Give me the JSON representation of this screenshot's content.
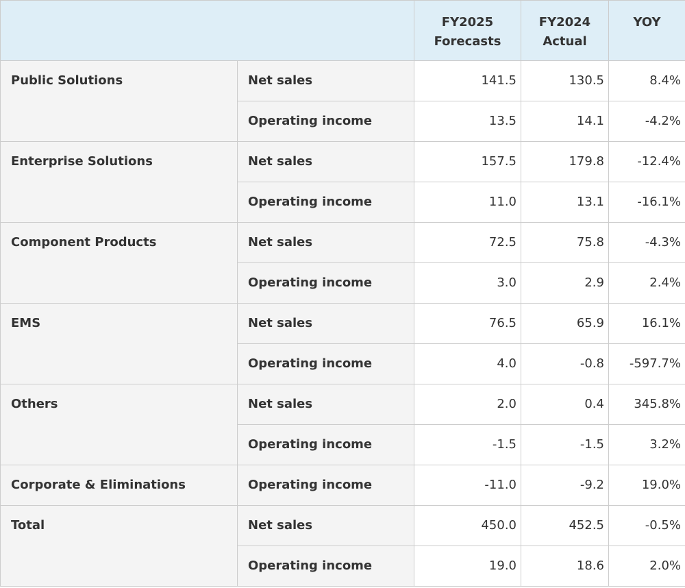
{
  "header": {
    "col1": [
      "FY2025",
      "Forecasts"
    ],
    "col2": [
      "FY2024",
      "Actual"
    ],
    "col3": [
      "YOY"
    ]
  },
  "segments": [
    {
      "name": "Public Solutions",
      "rows": [
        {
          "metric": "Net sales",
          "fy2025": "141.5",
          "fy2024": "130.5",
          "yoy": "8.4%"
        },
        {
          "metric": "Operating income",
          "fy2025": "13.5",
          "fy2024": "14.1",
          "yoy": "-4.2%"
        }
      ]
    },
    {
      "name": "Enterprise Solutions",
      "rows": [
        {
          "metric": "Net sales",
          "fy2025": "157.5",
          "fy2024": "179.8",
          "yoy": "-12.4%"
        },
        {
          "metric": "Operating income",
          "fy2025": "11.0",
          "fy2024": "13.1",
          "yoy": "-16.1%"
        }
      ]
    },
    {
      "name": "Component Products",
      "rows": [
        {
          "metric": "Net sales",
          "fy2025": "72.5",
          "fy2024": "75.8",
          "yoy": "-4.3%"
        },
        {
          "metric": "Operating income",
          "fy2025": "3.0",
          "fy2024": "2.9",
          "yoy": "2.4%"
        }
      ]
    },
    {
      "name": "EMS",
      "rows": [
        {
          "metric": "Net sales",
          "fy2025": "76.5",
          "fy2024": "65.9",
          "yoy": "16.1%"
        },
        {
          "metric": "Operating income",
          "fy2025": "4.0",
          "fy2024": "-0.8",
          "yoy": "-597.7%"
        }
      ]
    },
    {
      "name": "Others",
      "rows": [
        {
          "metric": "Net sales",
          "fy2025": "2.0",
          "fy2024": "0.4",
          "yoy": "345.8%"
        },
        {
          "metric": "Operating income",
          "fy2025": "-1.5",
          "fy2024": "-1.5",
          "yoy": "3.2%"
        }
      ]
    },
    {
      "name": "Corporate & Eliminations",
      "rows": [
        {
          "metric": "Operating income",
          "fy2025": "-11.0",
          "fy2024": "-9.2",
          "yoy": "19.0%"
        }
      ]
    },
    {
      "name": "Total",
      "rows": [
        {
          "metric": "Net sales",
          "fy2025": "450.0",
          "fy2024": "452.5",
          "yoy": "-0.5%"
        },
        {
          "metric": "Operating income",
          "fy2025": "19.0",
          "fy2024": "18.6",
          "yoy": "2.0%"
        }
      ]
    }
  ],
  "colors": {
    "header_bg": "#deeef7",
    "label_bg": "#f4f4f4",
    "border": "#cccccc",
    "text": "#333333"
  }
}
